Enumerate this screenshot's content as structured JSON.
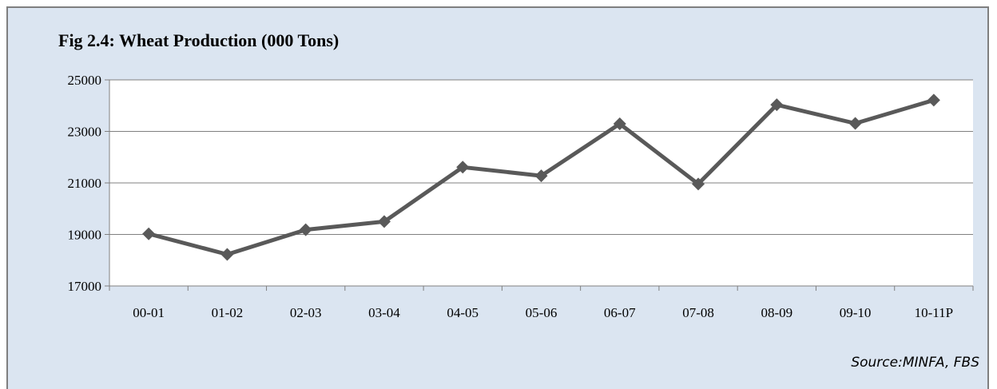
{
  "chart_data": {
    "type": "line",
    "title": "Fig 2.4: Wheat Production (000 Tons)",
    "xlabel": "",
    "ylabel": "",
    "categories": [
      "00-01",
      "01-02",
      "02-03",
      "03-04",
      "04-05",
      "05-06",
      "06-07",
      "07-08",
      "08-09",
      "09-10",
      "10-11P"
    ],
    "series": [
      {
        "values": [
          19024,
          18226,
          19183,
          19500,
          21612,
          21277,
          23295,
          20959,
          24033,
          23311,
          24214
        ]
      }
    ],
    "ylim": [
      17000,
      25000
    ],
    "yticks": [
      17000,
      19000,
      21000,
      23000,
      25000
    ],
    "ytick_labels": [
      "17000",
      "19000",
      "21000",
      "23000",
      "25000"
    ],
    "grid": true,
    "legend": "none",
    "line_color": "#595959",
    "marker": "diamond",
    "source": "Source:MINFA, FBS"
  },
  "colors": {
    "frame_bg": "#dbe5f1",
    "plot_bg": "#ffffff",
    "grid": "#808080",
    "series": "#595959"
  }
}
